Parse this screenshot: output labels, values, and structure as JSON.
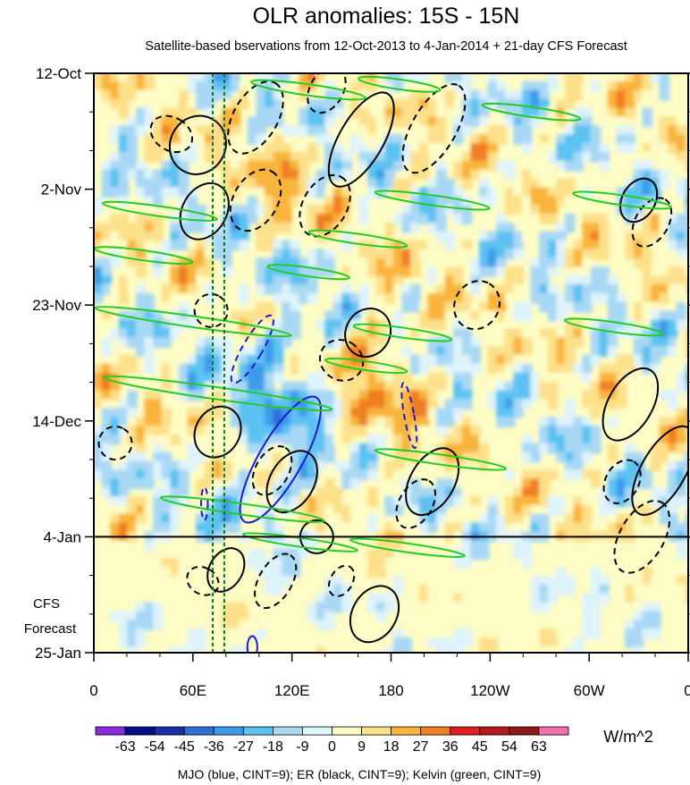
{
  "chart_data": {
    "type": "heatmap",
    "title": "OLR anomalies: 15S - 15N",
    "subtitle": "Satellite-based bservations from 12-Oct-2013 to 4-Jan-2014 + 21-day CFS Forecast",
    "x_ticks": [
      {
        "lon": 0,
        "label": "0"
      },
      {
        "lon": 60,
        "label": "60E"
      },
      {
        "lon": 120,
        "label": "120E"
      },
      {
        "lon": 180,
        "label": "180"
      },
      {
        "lon": 240,
        "label": "120W"
      },
      {
        "lon": 300,
        "label": "60W"
      },
      {
        "lon": 360,
        "label": "0"
      }
    ],
    "xlim": [
      0,
      360
    ],
    "y_ticks": [
      {
        "day": 0,
        "label": "12-Oct"
      },
      {
        "day": 21,
        "label": "2-Nov"
      },
      {
        "day": 42,
        "label": "23-Nov"
      },
      {
        "day": 63,
        "label": "14-Dec"
      },
      {
        "day": 84,
        "label": "4-Jan"
      },
      {
        "day": 105,
        "label": "25-Jan"
      }
    ],
    "ylim_days": [
      0,
      105
    ],
    "forecast_start_day": 84,
    "forecast_label_line1": "CFS",
    "forecast_label_line2": "Forecast",
    "reference_lon_lines": [
      72,
      79
    ],
    "colorbar": {
      "unit_label": "W/m^2",
      "levels": [
        -63,
        -54,
        -45,
        -36,
        -27,
        -18,
        -9,
        0,
        9,
        18,
        27,
        36,
        45,
        54,
        63
      ],
      "tick_labels": [
        "-63",
        "-54",
        "-45",
        "-36",
        "-27",
        "-18",
        "-9",
        "0",
        "9",
        "18",
        "27",
        "36",
        "45",
        "54",
        "63"
      ],
      "colors": [
        "#8a2be2",
        "#0a0a8c",
        "#1e30a8",
        "#2f6fd6",
        "#3d9be9",
        "#5cc2f2",
        "#a8d8f5",
        "#dff3fb",
        "#fdfcc4",
        "#fde08a",
        "#f9b43a",
        "#f07e22",
        "#e02020",
        "#b3181c",
        "#8c1a1a",
        "#f070b0"
      ]
    },
    "contour_legend": "MJO (blue, CINT=9); ER (black, CINT=9); Kelvin (green, CINT=9)",
    "series": [
      {
        "name": "MJO",
        "color": "#1a1ad0",
        "contours": [
          {
            "lon": 96,
            "day": 50,
            "rlon": 6,
            "rday": 7,
            "tilt": 30,
            "dashed": true
          },
          {
            "lon": 113,
            "day": 70,
            "rlon": 13,
            "rday": 13,
            "tilt": 30,
            "dashed": false
          },
          {
            "lon": 191,
            "day": 62,
            "rlon": 3,
            "rday": 6,
            "tilt": -10,
            "dashed": true
          },
          {
            "lon": 67,
            "day": 78,
            "rlon": 2,
            "rday": 3,
            "tilt": 0,
            "dashed": true
          },
          {
            "lon": 96,
            "day": 104,
            "rlon": 3,
            "rday": 2,
            "tilt": 0,
            "dashed": false
          }
        ]
      },
      {
        "name": "ER",
        "color": "#000000",
        "contours": [
          {
            "lon": 47,
            "day": 11,
            "rlon": 10,
            "rday": 4,
            "tilt": -60,
            "dashed": true
          },
          {
            "lon": 63,
            "day": 13,
            "rlon": 18,
            "rday": 5,
            "tilt": -60,
            "dashed": false
          },
          {
            "lon": 98,
            "day": 8,
            "rlon": 24,
            "rday": 4,
            "tilt": -60,
            "dashed": true
          },
          {
            "lon": 141,
            "day": 3,
            "rlon": 15,
            "rday": 3,
            "tilt": -60,
            "dashed": true
          },
          {
            "lon": 162,
            "day": 12,
            "rlon": 32,
            "rday": 4,
            "tilt": -60,
            "dashed": false
          },
          {
            "lon": 206,
            "day": 10,
            "rlon": 30,
            "rday": 4,
            "tilt": -60,
            "dashed": true
          },
          {
            "lon": 67,
            "day": 25,
            "rlon": 18,
            "rday": 4,
            "tilt": -60,
            "dashed": false
          },
          {
            "lon": 98,
            "day": 23,
            "rlon": 20,
            "rday": 4,
            "tilt": -60,
            "dashed": true
          },
          {
            "lon": 140,
            "day": 24,
            "rlon": 20,
            "rday": 4,
            "tilt": -60,
            "dashed": true
          },
          {
            "lon": 71,
            "day": 43,
            "rlon": 10,
            "rday": 3,
            "tilt": -60,
            "dashed": true
          },
          {
            "lon": 166,
            "day": 47,
            "rlon": 15,
            "rday": 4,
            "tilt": -60,
            "dashed": false
          },
          {
            "lon": 150,
            "day": 52,
            "rlon": 12,
            "rday": 4,
            "tilt": -60,
            "dashed": true
          },
          {
            "lon": 232,
            "day": 42,
            "rlon": 15,
            "rday": 4,
            "tilt": -60,
            "dashed": true
          },
          {
            "lon": 75,
            "day": 65,
            "rlon": 16,
            "rday": 4,
            "tilt": -60,
            "dashed": false
          },
          {
            "lon": 120,
            "day": 74,
            "rlon": 20,
            "rday": 4,
            "tilt": -60,
            "dashed": false
          },
          {
            "lon": 108,
            "day": 72,
            "rlon": 16,
            "rday": 3,
            "tilt": -60,
            "dashed": true
          },
          {
            "lon": 205,
            "day": 74,
            "rlon": 22,
            "rday": 4,
            "tilt": -60,
            "dashed": false
          },
          {
            "lon": 195,
            "day": 78,
            "rlon": 16,
            "rday": 3,
            "tilt": -60,
            "dashed": true
          },
          {
            "lon": 325,
            "day": 60,
            "rlon": 24,
            "rday": 4,
            "tilt": -60,
            "dashed": false
          },
          {
            "lon": 345,
            "day": 72,
            "rlon": 30,
            "rday": 4,
            "tilt": -60,
            "dashed": false
          },
          {
            "lon": 320,
            "day": 74,
            "rlon": 14,
            "rday": 3,
            "tilt": -60,
            "dashed": true
          },
          {
            "lon": 332,
            "day": 84,
            "rlon": 24,
            "rday": 4,
            "tilt": -60,
            "dashed": true
          },
          {
            "lon": 338,
            "day": 27,
            "rlon": 16,
            "rday": 3,
            "tilt": -60,
            "dashed": true
          },
          {
            "lon": 330,
            "day": 23,
            "rlon": 14,
            "rday": 3,
            "tilt": -60,
            "dashed": false
          },
          {
            "lon": 13,
            "day": 67,
            "rlon": 10,
            "rday": 3,
            "tilt": -60,
            "dashed": true
          },
          {
            "lon": 135,
            "day": 84,
            "rlon": 10,
            "rday": 3,
            "tilt": -60,
            "dashed": false
          },
          {
            "lon": 80,
            "day": 90,
            "rlon": 14,
            "rday": 3,
            "tilt": -60,
            "dashed": false
          },
          {
            "lon": 66,
            "day": 92,
            "rlon": 8,
            "rday": 3,
            "tilt": -60,
            "dashed": true
          },
          {
            "lon": 110,
            "day": 92,
            "rlon": 18,
            "rday": 3,
            "tilt": -60,
            "dashed": true
          },
          {
            "lon": 150,
            "day": 92,
            "rlon": 10,
            "rday": 2,
            "tilt": -60,
            "dashed": true
          },
          {
            "lon": 170,
            "day": 98,
            "rlon": 18,
            "rday": 4,
            "tilt": -60,
            "dashed": false
          }
        ]
      },
      {
        "name": "Kelvin",
        "color": "#22cc22",
        "contours": [
          {
            "lon": 130,
            "day": 3,
            "rlon": 35,
            "rday": 1.0,
            "tilt": 8,
            "dashed": false
          },
          {
            "lon": 185,
            "day": 2,
            "rlon": 25,
            "rday": 0.9,
            "tilt": 8,
            "dashed": false
          },
          {
            "lon": 265,
            "day": 7,
            "rlon": 30,
            "rday": 0.9,
            "tilt": 8,
            "dashed": false
          },
          {
            "lon": 40,
            "day": 25,
            "rlon": 35,
            "rday": 0.9,
            "tilt": 8,
            "dashed": false
          },
          {
            "lon": 205,
            "day": 23,
            "rlon": 35,
            "rday": 0.9,
            "tilt": 8,
            "dashed": false
          },
          {
            "lon": 320,
            "day": 23,
            "rlon": 30,
            "rday": 0.9,
            "tilt": 8,
            "dashed": false
          },
          {
            "lon": 30,
            "day": 33,
            "rlon": 30,
            "rday": 0.9,
            "tilt": 8,
            "dashed": false
          },
          {
            "lon": 160,
            "day": 30,
            "rlon": 30,
            "rday": 0.9,
            "tilt": 8,
            "dashed": false
          },
          {
            "lon": 130,
            "day": 36,
            "rlon": 25,
            "rday": 0.8,
            "tilt": 8,
            "dashed": false
          },
          {
            "lon": 60,
            "day": 45,
            "rlon": 60,
            "rday": 1.0,
            "tilt": 8,
            "dashed": false
          },
          {
            "lon": 187,
            "day": 47,
            "rlon": 30,
            "rday": 0.9,
            "tilt": 8,
            "dashed": false
          },
          {
            "lon": 315,
            "day": 46,
            "rlon": 30,
            "rday": 0.9,
            "tilt": 8,
            "dashed": false
          },
          {
            "lon": 75,
            "day": 58,
            "rlon": 70,
            "rday": 1.1,
            "tilt": 8,
            "dashed": false
          },
          {
            "lon": 165,
            "day": 53,
            "rlon": 25,
            "rday": 0.8,
            "tilt": 8,
            "dashed": false
          },
          {
            "lon": 210,
            "day": 70,
            "rlon": 40,
            "rday": 0.9,
            "tilt": 8,
            "dashed": false
          },
          {
            "lon": 90,
            "day": 79,
            "rlon": 50,
            "rday": 1.0,
            "tilt": 8,
            "dashed": false
          },
          {
            "lon": 190,
            "day": 86,
            "rlon": 35,
            "rday": 0.8,
            "tilt": 8,
            "dashed": false
          },
          {
            "lon": 125,
            "day": 85,
            "rlon": 35,
            "rday": 0.8,
            "tilt": 8,
            "dashed": false
          }
        ]
      }
    ]
  }
}
